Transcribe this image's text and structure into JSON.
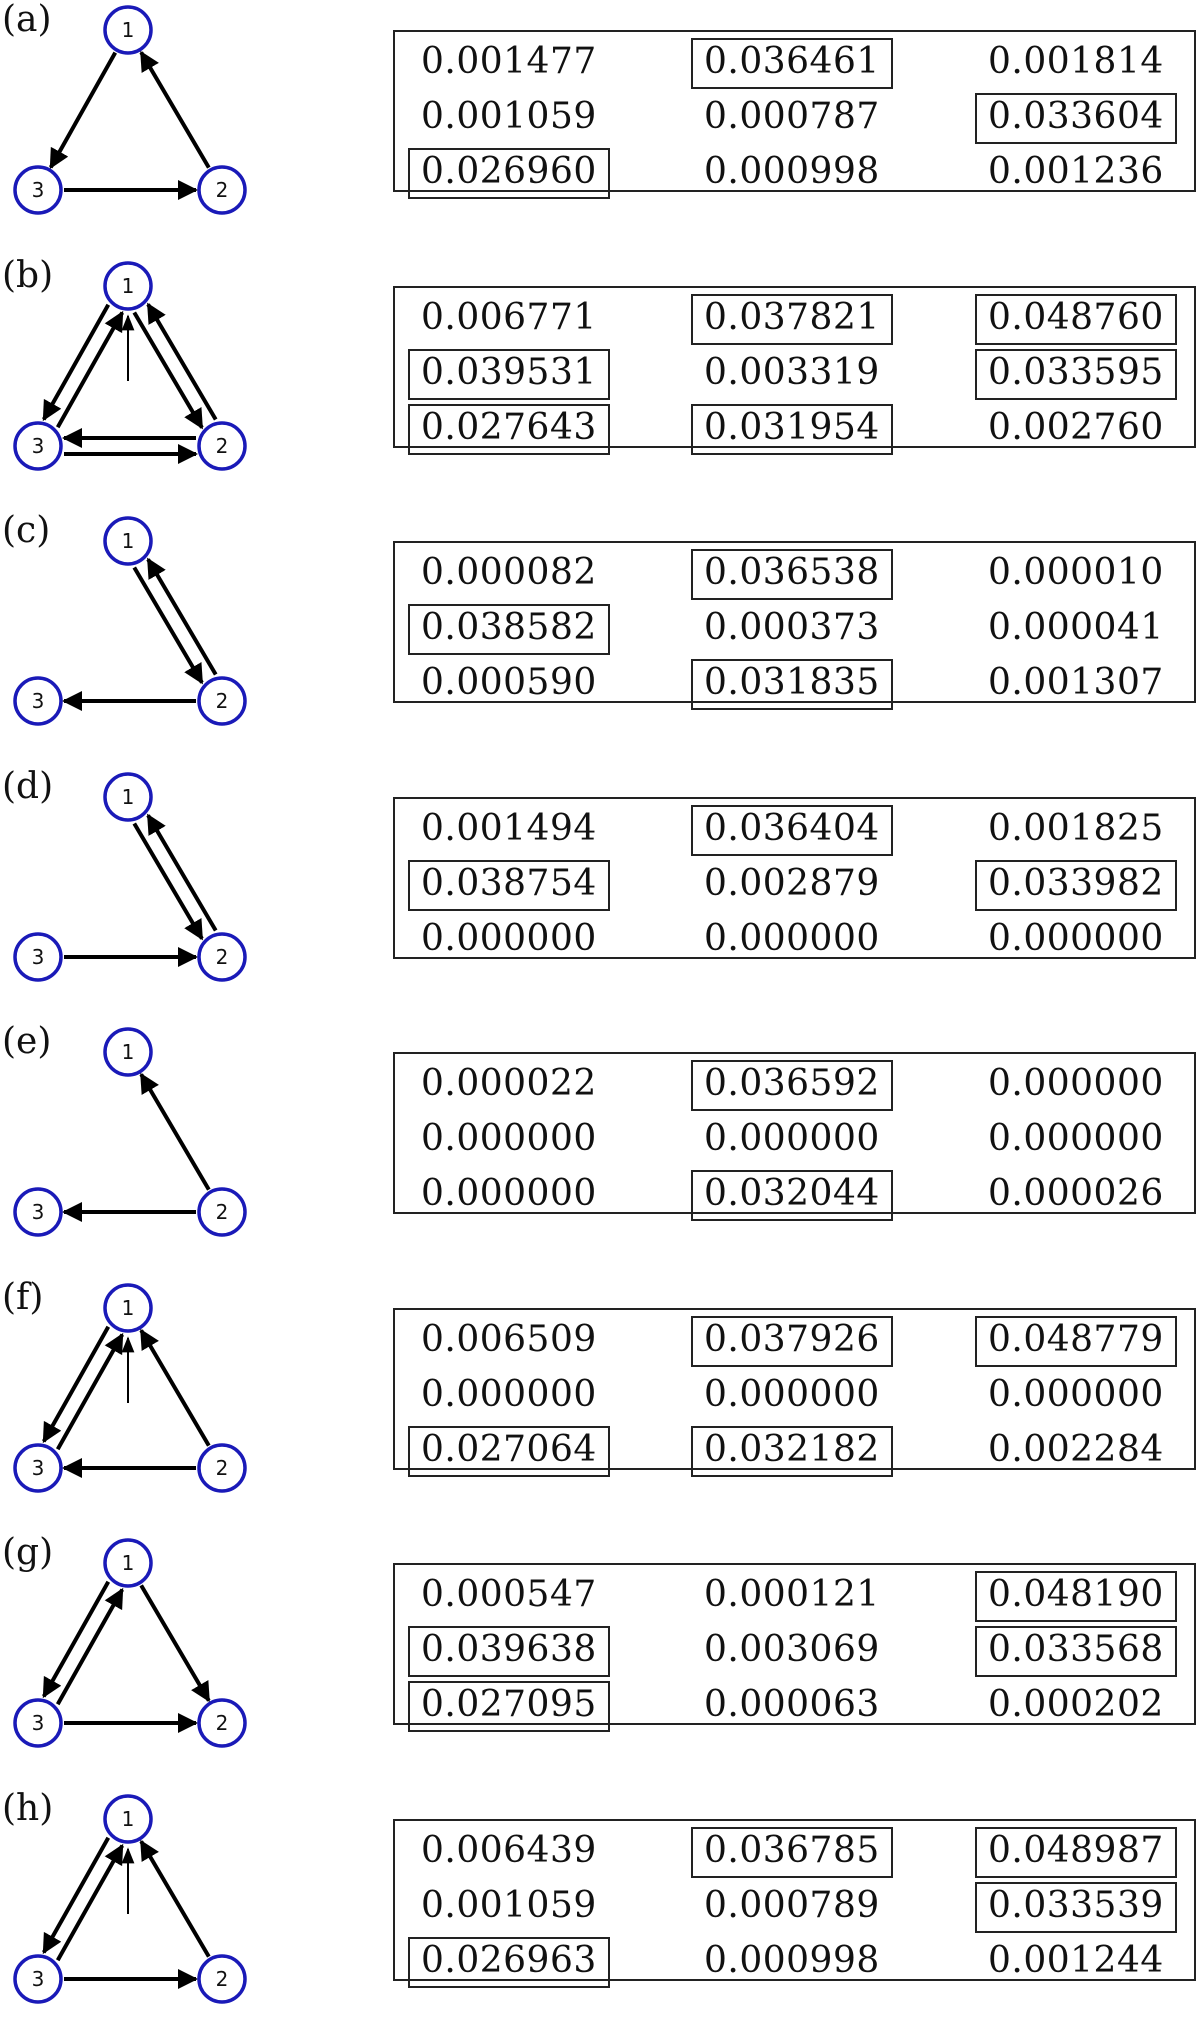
{
  "colors": {
    "node_stroke": "#1a1ab8",
    "edge": "#000000",
    "text": "#111111"
  },
  "panels": [
    {
      "label": "(a)",
      "nodes": [
        "1",
        "2",
        "3"
      ],
      "edges": [
        {
          "from": "1",
          "to": "3",
          "style": "normal"
        },
        {
          "from": "3",
          "to": "2",
          "style": "normal"
        },
        {
          "from": "2",
          "to": "1",
          "style": "normal"
        }
      ],
      "self_arrow_1": false,
      "matrix": [
        [
          {
            "v": "0.001477",
            "boxed": false
          },
          {
            "v": "0.036461",
            "boxed": true
          },
          {
            "v": "0.001814",
            "boxed": false
          }
        ],
        [
          {
            "v": "0.001059",
            "boxed": false
          },
          {
            "v": "0.000787",
            "boxed": false
          },
          {
            "v": "0.033604",
            "boxed": true
          }
        ],
        [
          {
            "v": "0.026960",
            "boxed": true
          },
          {
            "v": "0.000998",
            "boxed": false
          },
          {
            "v": "0.001236",
            "boxed": false
          }
        ]
      ]
    },
    {
      "label": "(b)",
      "nodes": [
        "1",
        "2",
        "3"
      ],
      "edges": [
        {
          "from": "1",
          "to": "3",
          "style": "pair"
        },
        {
          "from": "3",
          "to": "1",
          "style": "pair"
        },
        {
          "from": "1",
          "to": "2",
          "style": "pair"
        },
        {
          "from": "2",
          "to": "1",
          "style": "pair"
        },
        {
          "from": "3",
          "to": "2",
          "style": "pair"
        },
        {
          "from": "2",
          "to": "3",
          "style": "pair"
        }
      ],
      "self_arrow_1": true,
      "matrix": [
        [
          {
            "v": "0.006771",
            "boxed": false
          },
          {
            "v": "0.037821",
            "boxed": true
          },
          {
            "v": "0.048760",
            "boxed": true
          }
        ],
        [
          {
            "v": "0.039531",
            "boxed": true
          },
          {
            "v": "0.003319",
            "boxed": false
          },
          {
            "v": "0.033595",
            "boxed": true
          }
        ],
        [
          {
            "v": "0.027643",
            "boxed": true
          },
          {
            "v": "0.031954",
            "boxed": true
          },
          {
            "v": "0.002760",
            "boxed": false
          }
        ]
      ]
    },
    {
      "label": "(c)",
      "nodes": [
        "1",
        "2",
        "3"
      ],
      "edges": [
        {
          "from": "1",
          "to": "2",
          "style": "pair"
        },
        {
          "from": "2",
          "to": "1",
          "style": "pair"
        },
        {
          "from": "2",
          "to": "3",
          "style": "normal"
        }
      ],
      "self_arrow_1": false,
      "matrix": [
        [
          {
            "v": "0.000082",
            "boxed": false
          },
          {
            "v": "0.036538",
            "boxed": true
          },
          {
            "v": "0.000010",
            "boxed": false
          }
        ],
        [
          {
            "v": "0.038582",
            "boxed": true
          },
          {
            "v": "0.000373",
            "boxed": false
          },
          {
            "v": "0.000041",
            "boxed": false
          }
        ],
        [
          {
            "v": "0.000590",
            "boxed": false
          },
          {
            "v": "0.031835",
            "boxed": true
          },
          {
            "v": "0.001307",
            "boxed": false
          }
        ]
      ]
    },
    {
      "label": "(d)",
      "nodes": [
        "1",
        "2",
        "3"
      ],
      "edges": [
        {
          "from": "1",
          "to": "2",
          "style": "pair"
        },
        {
          "from": "2",
          "to": "1",
          "style": "pair"
        },
        {
          "from": "3",
          "to": "2",
          "style": "normal"
        }
      ],
      "self_arrow_1": false,
      "matrix": [
        [
          {
            "v": "0.001494",
            "boxed": false
          },
          {
            "v": "0.036404",
            "boxed": true
          },
          {
            "v": "0.001825",
            "boxed": false
          }
        ],
        [
          {
            "v": "0.038754",
            "boxed": true
          },
          {
            "v": "0.002879",
            "boxed": false
          },
          {
            "v": "0.033982",
            "boxed": true
          }
        ],
        [
          {
            "v": "0.000000",
            "boxed": false
          },
          {
            "v": "0.000000",
            "boxed": false
          },
          {
            "v": "0.000000",
            "boxed": false
          }
        ]
      ]
    },
    {
      "label": "(e)",
      "nodes": [
        "1",
        "2",
        "3"
      ],
      "edges": [
        {
          "from": "2",
          "to": "1",
          "style": "normal"
        },
        {
          "from": "2",
          "to": "3",
          "style": "normal"
        }
      ],
      "self_arrow_1": false,
      "matrix": [
        [
          {
            "v": "0.000022",
            "boxed": false
          },
          {
            "v": "0.036592",
            "boxed": true
          },
          {
            "v": "0.000000",
            "boxed": false
          }
        ],
        [
          {
            "v": "0.000000",
            "boxed": false
          },
          {
            "v": "0.000000",
            "boxed": false
          },
          {
            "v": "0.000000",
            "boxed": false
          }
        ],
        [
          {
            "v": "0.000000",
            "boxed": false
          },
          {
            "v": "0.032044",
            "boxed": true
          },
          {
            "v": "0.000026",
            "boxed": false
          }
        ]
      ]
    },
    {
      "label": "(f)",
      "nodes": [
        "1",
        "2",
        "3"
      ],
      "edges": [
        {
          "from": "1",
          "to": "3",
          "style": "pair"
        },
        {
          "from": "3",
          "to": "1",
          "style": "pair"
        },
        {
          "from": "2",
          "to": "1",
          "style": "normal"
        },
        {
          "from": "2",
          "to": "3",
          "style": "normal"
        }
      ],
      "self_arrow_1": true,
      "matrix": [
        [
          {
            "v": "0.006509",
            "boxed": false
          },
          {
            "v": "0.037926",
            "boxed": true
          },
          {
            "v": "0.048779",
            "boxed": true
          }
        ],
        [
          {
            "v": "0.000000",
            "boxed": false
          },
          {
            "v": "0.000000",
            "boxed": false
          },
          {
            "v": "0.000000",
            "boxed": false
          }
        ],
        [
          {
            "v": "0.027064",
            "boxed": true
          },
          {
            "v": "0.032182",
            "boxed": true
          },
          {
            "v": "0.002284",
            "boxed": false
          }
        ]
      ]
    },
    {
      "label": "(g)",
      "nodes": [
        "1",
        "2",
        "3"
      ],
      "edges": [
        {
          "from": "1",
          "to": "3",
          "style": "pair"
        },
        {
          "from": "3",
          "to": "1",
          "style": "pair"
        },
        {
          "from": "1",
          "to": "2",
          "style": "normal"
        },
        {
          "from": "3",
          "to": "2",
          "style": "normal"
        }
      ],
      "self_arrow_1": false,
      "matrix": [
        [
          {
            "v": "0.000547",
            "boxed": false
          },
          {
            "v": "0.000121",
            "boxed": false
          },
          {
            "v": "0.048190",
            "boxed": true
          }
        ],
        [
          {
            "v": "0.039638",
            "boxed": true
          },
          {
            "v": "0.003069",
            "boxed": false
          },
          {
            "v": "0.033568",
            "boxed": true
          }
        ],
        [
          {
            "v": "0.027095",
            "boxed": true
          },
          {
            "v": "0.000063",
            "boxed": false
          },
          {
            "v": "0.000202",
            "boxed": false
          }
        ]
      ]
    },
    {
      "label": "(h)",
      "nodes": [
        "1",
        "2",
        "3"
      ],
      "edges": [
        {
          "from": "1",
          "to": "3",
          "style": "pair"
        },
        {
          "from": "3",
          "to": "1",
          "style": "pair"
        },
        {
          "from": "2",
          "to": "1",
          "style": "normal"
        },
        {
          "from": "3",
          "to": "2",
          "style": "normal"
        }
      ],
      "self_arrow_1": true,
      "matrix": [
        [
          {
            "v": "0.006439",
            "boxed": false
          },
          {
            "v": "0.036785",
            "boxed": true
          },
          {
            "v": "0.048987",
            "boxed": true
          }
        ],
        [
          {
            "v": "0.001059",
            "boxed": false
          },
          {
            "v": "0.000789",
            "boxed": false
          },
          {
            "v": "0.033539",
            "boxed": true
          }
        ],
        [
          {
            "v": "0.026963",
            "boxed": true
          },
          {
            "v": "0.000998",
            "boxed": false
          },
          {
            "v": "0.001244",
            "boxed": false
          }
        ]
      ]
    }
  ]
}
